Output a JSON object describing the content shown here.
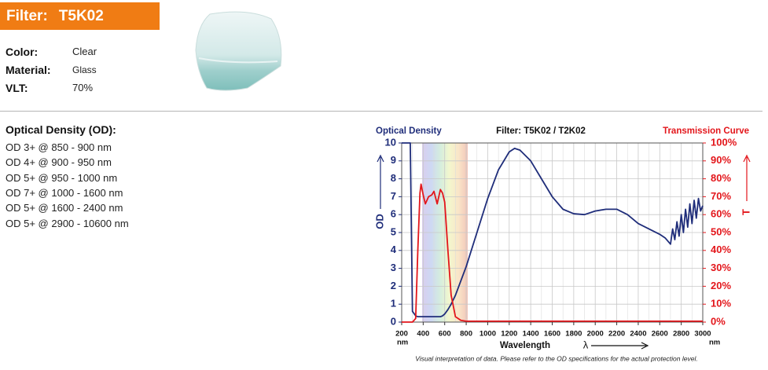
{
  "header": {
    "label": "Filter:",
    "name": "T5K02"
  },
  "specs": [
    {
      "label": "Color:",
      "value": "Clear"
    },
    {
      "label": "Material:",
      "value": "Glass"
    },
    {
      "label": "VLT:",
      "value": "70%"
    }
  ],
  "od_section": {
    "title": "Optical Density (OD):",
    "items": [
      "OD 3+ @ 850 - 900 nm",
      "OD 4+ @ 900 - 950 nm",
      "OD 5+ @ 950 - 1000 nm",
      "OD 7+ @ 1000 - 1600 nm",
      "OD 5+ @ 1600 - 2400 nm",
      "OD 5+ @ 2900 - 10600 nm"
    ]
  },
  "chart_data": {
    "type": "line",
    "title": "Filter: T5K02 / T2K02",
    "y_axis_title": "Optical Density",
    "y2_axis_title": "Transmission Curve",
    "x_label": "Wavelength",
    "x_symbol": "λ",
    "x_unit": "nm",
    "note": "Visual interpretation of data. Please refer to the OD specifications for the actual protection level.",
    "x": [
      200,
      250,
      280,
      300,
      330,
      350,
      370,
      380,
      400,
      420,
      450,
      480,
      500,
      530,
      560,
      580,
      600,
      630,
      660,
      700,
      750,
      800,
      900,
      1000,
      1100,
      1200,
      1250,
      1300,
      1400,
      1500,
      1600,
      1700,
      1800,
      1900,
      2000,
      2100,
      2200,
      2300,
      2400,
      2500,
      2600,
      2650,
      2700,
      2720,
      2740,
      2760,
      2780,
      2800,
      2820,
      2840,
      2860,
      2880,
      2900,
      2920,
      2940,
      2960,
      2980,
      3000
    ],
    "series": [
      {
        "name": "OD",
        "color": "#1f2d7a",
        "values": [
          10,
          10,
          10,
          0.6,
          0.35,
          0.3,
          0.3,
          0.3,
          0.3,
          0.3,
          0.3,
          0.3,
          0.3,
          0.3,
          0.3,
          0.35,
          0.45,
          0.7,
          1.0,
          1.5,
          2.3,
          3.1,
          5.0,
          6.9,
          8.5,
          9.5,
          9.7,
          9.6,
          9.0,
          8.0,
          7.0,
          6.3,
          6.05,
          6.0,
          6.2,
          6.3,
          6.3,
          6.0,
          5.5,
          5.2,
          4.9,
          4.7,
          4.35,
          5.2,
          4.6,
          5.6,
          4.8,
          6.0,
          5.0,
          6.3,
          5.3,
          6.6,
          5.5,
          6.8,
          5.8,
          6.9,
          6.2,
          6.5
        ]
      },
      {
        "name": "T",
        "color": "#e3161b",
        "axis": "y2",
        "values": [
          0,
          0,
          0,
          0,
          2,
          40,
          72,
          77,
          71,
          66,
          70,
          71,
          73,
          66,
          74,
          72,
          67,
          40,
          15,
          3,
          1,
          0.5,
          0.5,
          0.5,
          0.5,
          0.5,
          0.5,
          0.5,
          0.5,
          0.5,
          0.5,
          0.5,
          0.5,
          0.5,
          0.5,
          0.5,
          0.5,
          0.5,
          0.5,
          0.5,
          0.5,
          0.5,
          0.5,
          0.5,
          0.5,
          0.5,
          0.5,
          0.5,
          0.5,
          0.5,
          0.5,
          0.5,
          0.5,
          0.5,
          0.5,
          0.5,
          0.5,
          0.5
        ]
      }
    ],
    "xlim": [
      200,
      3000
    ],
    "xticks": [
      200,
      400,
      600,
      800,
      1000,
      1200,
      1400,
      1600,
      1800,
      2000,
      2200,
      2400,
      2600,
      2800,
      3000
    ],
    "ylim": [
      0,
      10
    ],
    "yticks": [
      0,
      1,
      2,
      3,
      4,
      5,
      6,
      7,
      8,
      9,
      10
    ],
    "y2lim": [
      0,
      100
    ],
    "y2ticks": [
      {
        "value": 0,
        "label": "0%"
      },
      {
        "value": 10,
        "label": "10%"
      },
      {
        "value": 20,
        "label": "20%"
      },
      {
        "value": 30,
        "label": "30%"
      },
      {
        "value": 40,
        "label": "40%"
      },
      {
        "value": 50,
        "label": "50%"
      },
      {
        "value": 60,
        "label": "60%"
      },
      {
        "value": 70,
        "label": "70%"
      },
      {
        "value": 80,
        "label": "80%"
      },
      {
        "value": 90,
        "label": "90%"
      },
      {
        "value": 100,
        "label": "100%"
      }
    ],
    "grid": true
  }
}
